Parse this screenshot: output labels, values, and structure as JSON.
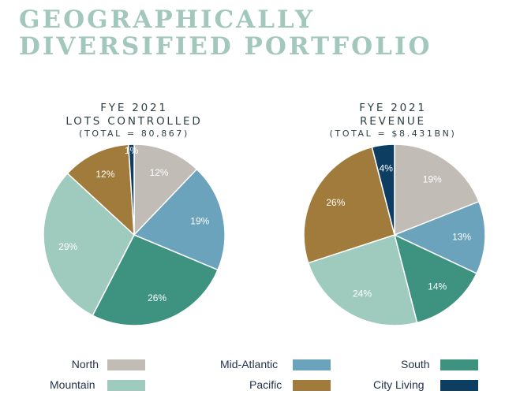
{
  "header": {
    "title_line1": "GEOGRAPHICALLY",
    "title_line2": "DIVERSIFIED PORTFOLIO"
  },
  "chart_data": [
    {
      "type": "pie",
      "title": "FYE 2021",
      "subtitle": "LOTS CONTROLLED",
      "total_label": "(TOTAL = 80,867)",
      "slices": [
        {
          "category": "North",
          "value": 12,
          "label": "12%",
          "color": "#c1bcb6"
        },
        {
          "category": "Mid-Atlantic",
          "value": 19,
          "label": "19%",
          "color": "#6aa3bb"
        },
        {
          "category": "South",
          "value": 26,
          "label": "26%",
          "color": "#3d9380"
        },
        {
          "category": "Mountain",
          "value": 29,
          "label": "29%",
          "color": "#9fcbbf"
        },
        {
          "category": "Pacific",
          "value": 12,
          "label": "12%",
          "color": "#a07b3c"
        },
        {
          "category": "City Living",
          "value": 1,
          "label": "1%",
          "color": "#0e3d62"
        }
      ]
    },
    {
      "type": "pie",
      "title": "FYE 2021",
      "subtitle": "REVENUE",
      "total_label": "(TOTAL = $8.431BN)",
      "slices": [
        {
          "category": "North",
          "value": 19,
          "label": "19%",
          "color": "#c1bcb6"
        },
        {
          "category": "Mid-Atlantic",
          "value": 13,
          "label": "13%",
          "color": "#6aa3bb"
        },
        {
          "category": "South",
          "value": 14,
          "label": "14%",
          "color": "#3d9380"
        },
        {
          "category": "Mountain",
          "value": 24,
          "label": "24%",
          "color": "#9fcbbf"
        },
        {
          "category": "Pacific",
          "value": 26,
          "label": "26%",
          "color": "#a07b3c"
        },
        {
          "category": "City Living",
          "value": 4,
          "label": "4%",
          "color": "#0e3d62"
        }
      ]
    }
  ],
  "legend": [
    {
      "label": "North",
      "color": "#c1bcb6"
    },
    {
      "label": "Mid-Atlantic",
      "color": "#6aa3bb"
    },
    {
      "label": "South",
      "color": "#3d9380"
    },
    {
      "label": "Mountain",
      "color": "#9fcbbf"
    },
    {
      "label": "Pacific",
      "color": "#a07b3c"
    },
    {
      "label": "City Living",
      "color": "#0e3d62"
    }
  ]
}
